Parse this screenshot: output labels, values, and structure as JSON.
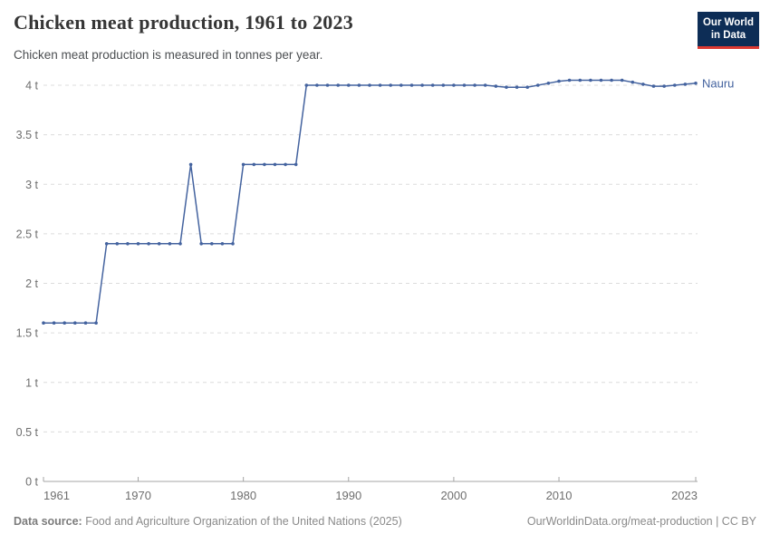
{
  "header": {
    "title": "Chicken meat production, 1961 to 2023",
    "subtitle": "Chicken meat production is measured in tonnes per year."
  },
  "logo": {
    "line1": "Our World",
    "line2": "in Data"
  },
  "colors": {
    "line": "#44639f",
    "grid": "#dcdcdc",
    "axis": "#a5a5a5",
    "tick_label": "#6e6e6e",
    "logo_bg": "#0d2d56",
    "logo_accent": "#dc3932"
  },
  "chart_data": {
    "type": "line",
    "title": "Chicken meat production, 1961 to 2023",
    "xlabel": "",
    "ylabel": "tonnes per year",
    "xlim": [
      1961,
      2023
    ],
    "ylim": [
      0,
      4
    ],
    "grid": "horizontal-dashed",
    "legend_position": "end-of-line-label",
    "x_tick_values": [
      1961,
      1970,
      1980,
      1990,
      2000,
      2010,
      2023
    ],
    "y_ticks": {
      "values": [
        0,
        0.5,
        1,
        1.5,
        2,
        2.5,
        3,
        3.5,
        4
      ],
      "labels": [
        "0 t",
        "0.5 t",
        "1 t",
        "1.5 t",
        "2 t",
        "2.5 t",
        "3 t",
        "3.5 t",
        "4 t"
      ]
    },
    "x": [
      1961,
      1962,
      1963,
      1964,
      1965,
      1966,
      1967,
      1968,
      1969,
      1970,
      1971,
      1972,
      1973,
      1974,
      1975,
      1976,
      1977,
      1978,
      1979,
      1980,
      1981,
      1982,
      1983,
      1984,
      1985,
      1986,
      1987,
      1988,
      1989,
      1990,
      1991,
      1992,
      1993,
      1994,
      1995,
      1996,
      1997,
      1998,
      1999,
      2000,
      2001,
      2002,
      2003,
      2004,
      2005,
      2006,
      2007,
      2008,
      2009,
      2010,
      2011,
      2012,
      2013,
      2014,
      2015,
      2016,
      2017,
      2018,
      2019,
      2020,
      2021,
      2022,
      2023
    ],
    "series": [
      {
        "name": "Nauru",
        "values": [
          1.6,
          1.6,
          1.6,
          1.6,
          1.6,
          1.6,
          2.4,
          2.4,
          2.4,
          2.4,
          2.4,
          2.4,
          2.4,
          2.4,
          3.2,
          2.4,
          2.4,
          2.4,
          2.4,
          3.2,
          3.2,
          3.2,
          3.2,
          3.2,
          3.2,
          4,
          4,
          4,
          4,
          4,
          4,
          4,
          4,
          4,
          4,
          4,
          4,
          4,
          4,
          4,
          4,
          4,
          4,
          3.99,
          3.98,
          3.98,
          3.98,
          4,
          4.02,
          4.04,
          4.05,
          4.05,
          4.05,
          4.05,
          4.05,
          4.05,
          4.03,
          4.01,
          3.99,
          3.99,
          4,
          4.01,
          4.02
        ]
      }
    ]
  },
  "footer": {
    "source_label": "Data source:",
    "source_text": "Food and Agriculture Organization of the United Nations (2025)",
    "right_text": "OurWorldinData.org/meat-production | CC BY"
  }
}
